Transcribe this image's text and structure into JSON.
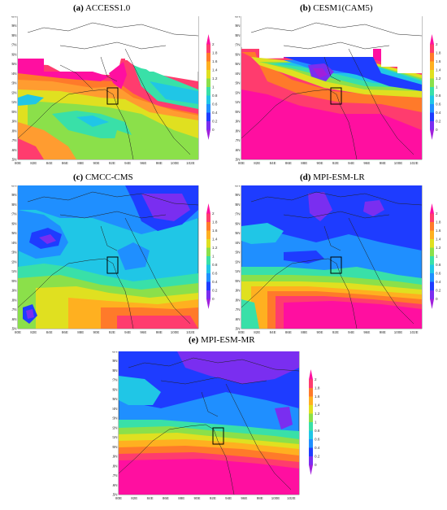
{
  "figure": {
    "panels": [
      {
        "letter": "(a)",
        "name": "ACCESS1.0"
      },
      {
        "letter": "(b)",
        "name": "CESM1(CAM5)"
      },
      {
        "letter": "(c)",
        "name": "CMCC-CMS"
      },
      {
        "letter": "(d)",
        "name": "MPI-ESM-LR"
      },
      {
        "letter": "(e)",
        "name": "MPI-ESM-MR"
      }
    ],
    "lon_ticks": [
      "80E",
      "82E",
      "84E",
      "86E",
      "88E",
      "90E",
      "92E",
      "94E",
      "96E",
      "98E",
      "100E",
      "102E"
    ],
    "lat_ticks": [
      "15N",
      "16N",
      "17N",
      "18N",
      "19N",
      "20N",
      "21N",
      "22N",
      "23N",
      "24N",
      "25N",
      "26N",
      "27N",
      "28N",
      "29N",
      "30N"
    ],
    "colorbar_ticks": [
      "0",
      "0.2",
      "0.4",
      "0.6",
      "0.8",
      "1",
      "1.2",
      "1.4",
      "1.6",
      "1.8",
      "2"
    ],
    "colorbar_colors": [
      "#a01fdc",
      "#7a2ef0",
      "#1e3cff",
      "#1f8fff",
      "#20c6e6",
      "#39e0a8",
      "#8be04a",
      "#e0e020",
      "#ffb020",
      "#ff7a2a",
      "#ff3c6e",
      "#ff0fa0"
    ],
    "map_extent": {
      "lon": [
        80,
        103
      ],
      "lat": [
        15,
        30
      ]
    },
    "study_box": {
      "lon": [
        92,
        93
      ],
      "lat": [
        21,
        22.5
      ]
    }
  }
}
